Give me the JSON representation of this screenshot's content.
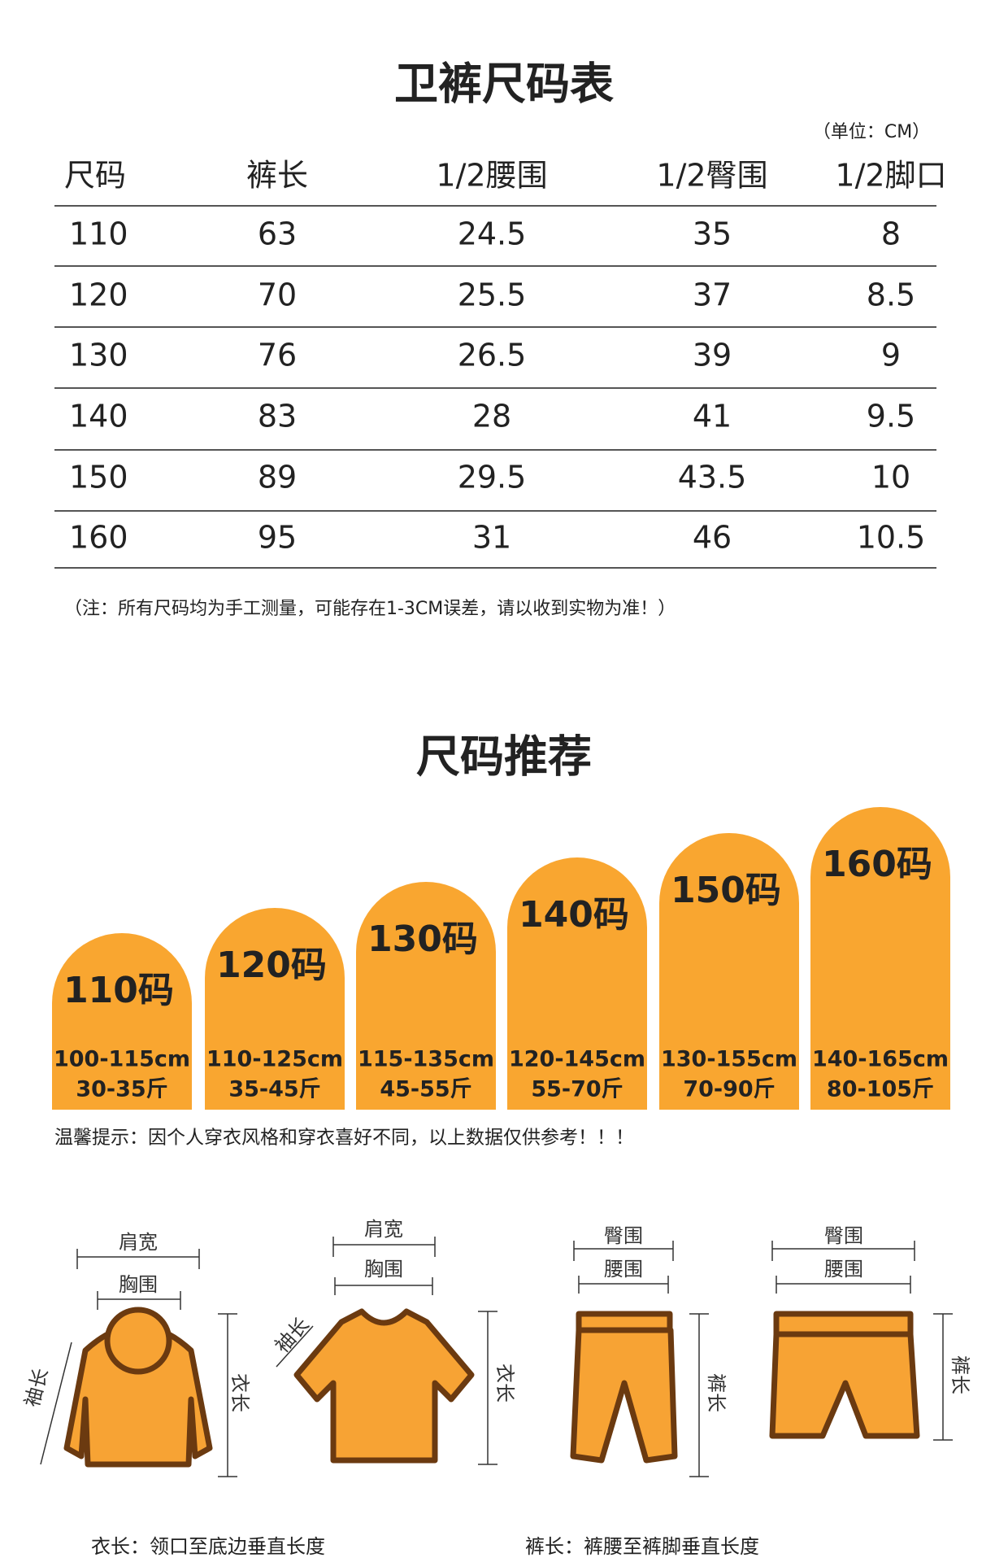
{
  "size_table": {
    "title": "卫裤尺码表",
    "unit": "（单位：CM）",
    "headers": [
      "尺码",
      "裤长",
      "1/2腰围",
      "1/2臀围",
      "1/2脚口"
    ],
    "rows": [
      [
        110,
        63,
        24.5,
        35,
        8
      ],
      [
        120,
        70,
        25.5,
        37,
        8.5
      ],
      [
        130,
        76,
        26.5,
        39,
        9
      ],
      [
        140,
        83,
        28,
        41,
        9.5
      ],
      [
        150,
        89,
        29.5,
        43.5,
        10
      ],
      [
        160,
        95,
        31,
        46,
        10.5
      ]
    ],
    "note": "（注：所有尺码均为手工测量，可能存在1-3CM误差，请以收到实物为准！）"
  },
  "recommend": {
    "title": "尺码推荐",
    "cards": [
      {
        "size": "110码",
        "height": "100-115cm",
        "weight": "30-35斤"
      },
      {
        "size": "120码",
        "height": "110-125cm",
        "weight": "35-45斤"
      },
      {
        "size": "130码",
        "height": "115-135cm",
        "weight": "45-55斤"
      },
      {
        "size": "140码",
        "height": "120-145cm",
        "weight": "55-70斤"
      },
      {
        "size": "150码",
        "height": "130-155cm",
        "weight": "70-90斤"
      },
      {
        "size": "160码",
        "height": "140-165cm",
        "weight": "80-105斤"
      }
    ],
    "tip": "温馨提示：因个人穿衣风格和穿衣喜好不同，以上数据仅供参考！！！"
  },
  "diagrams": {
    "hoodie": {
      "shoulder": "肩宽",
      "chest": "胸围",
      "sleeve": "袖长",
      "length": "衣长"
    },
    "tshirt": {
      "shoulder": "肩宽",
      "chest": "胸围",
      "sleeve": "袖长",
      "length": "衣长"
    },
    "pants": {
      "hip": "臀围",
      "waist": "腰围",
      "length": "裤长"
    },
    "shorts": {
      "hip": "臀围",
      "waist": "腰围",
      "length": "裤长"
    },
    "notes": [
      "衣长：领口至底边垂直长度",
      "裤长：裤腰至裤脚垂直长度"
    ]
  }
}
